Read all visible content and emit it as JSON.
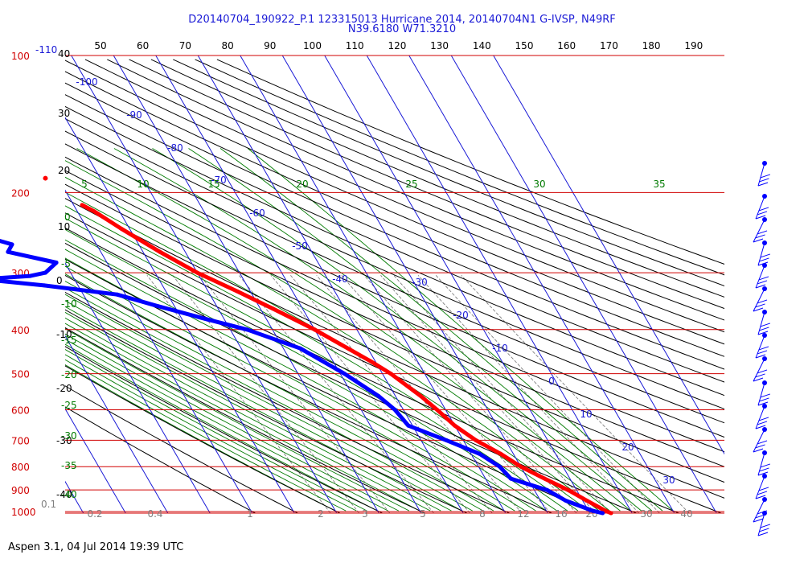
{
  "header": {
    "title": "D20140704_190922_P.1 123315013 Hurricane 2014, 20140704N1 G-IVSP, N49RF",
    "subtitle": "N39.6180 W71.3210"
  },
  "footer": {
    "text": "Aspen 3.1, 04 Jul 2014  19:39 UTC"
  },
  "colors": {
    "isobar": "#d10000",
    "isotherm": "#1a1ad6",
    "dry_adiabat": "#000000",
    "moist_adiabat": "#007a00",
    "mixing_ratio": "#7f7f7f",
    "temperature": "#ff0000",
    "dewpoint": "#0000ff"
  },
  "chart_data": {
    "type": "line",
    "title": "D20140704_190922_P.1 123315013 Hurricane 2014, 20140704N1 G-IVSP, N49RF",
    "pressure_levels": [
      100,
      200,
      300,
      400,
      500,
      600,
      700,
      800,
      900,
      1000
    ],
    "pressure_labels": [
      "100",
      "200",
      "300",
      "400",
      "500",
      "600",
      "700",
      "800",
      "900",
      "1000"
    ],
    "top_temp_ticks": [
      "50",
      "60",
      "70",
      "80",
      "90",
      "100",
      "110",
      "120",
      "130",
      "140",
      "150",
      "160",
      "170",
      "180",
      "190"
    ],
    "isotherm_labels": [
      "-110",
      "-100",
      "-90",
      "-80",
      "-70",
      "-60",
      "-50",
      "-40",
      "-30",
      "-20",
      "-10",
      "0",
      "10",
      "20",
      "30"
    ],
    "height_labels_left": [
      "40",
      "30",
      "20",
      "10",
      "0",
      "-10",
      "-20",
      "-30",
      "-40"
    ],
    "moist_top_labels": [
      "5",
      "10",
      "15",
      "20",
      "25",
      "30",
      "35"
    ],
    "moist_left_labels": [
      "0",
      "-5",
      "-10",
      "-15",
      "-20",
      "-25",
      "-30",
      "-35",
      "-40"
    ],
    "mixing_ratio_labels": [
      "0.1",
      "0.2",
      "0.4",
      "1",
      "2",
      "3",
      "5",
      "8",
      "12",
      "16",
      "20",
      "30",
      "40"
    ],
    "series": [
      {
        "name": "Temperature",
        "points": [
          [
            213,
            -58
          ],
          [
            220,
            -56
          ],
          [
            240,
            -52
          ],
          [
            270,
            -46
          ],
          [
            300,
            -40
          ],
          [
            330,
            -33
          ],
          [
            360,
            -27
          ],
          [
            400,
            -20
          ],
          [
            430,
            -16
          ],
          [
            470,
            -11
          ],
          [
            500,
            -8
          ],
          [
            560,
            -4
          ],
          [
            600,
            -2
          ],
          [
            650,
            0
          ],
          [
            700,
            3
          ],
          [
            750,
            7
          ],
          [
            800,
            10
          ],
          [
            850,
            14
          ],
          [
            900,
            18
          ],
          [
            950,
            21
          ],
          [
            1000,
            24
          ],
          [
            1012,
            25
          ]
        ]
      },
      {
        "name": "Dewpoint",
        "points": [
          [
            240,
            -85
          ],
          [
            245,
            -88
          ],
          [
            260,
            -80
          ],
          [
            270,
            -82
          ],
          [
            285,
            -72
          ],
          [
            300,
            -76
          ],
          [
            305,
            -80
          ],
          [
            310,
            -92
          ],
          [
            320,
            -78
          ],
          [
            335,
            -62
          ],
          [
            355,
            -54
          ],
          [
            380,
            -44
          ],
          [
            400,
            -36
          ],
          [
            440,
            -26
          ],
          [
            500,
            -19
          ],
          [
            560,
            -14
          ],
          [
            600,
            -12
          ],
          [
            650,
            -11
          ],
          [
            700,
            -4
          ],
          [
            750,
            2
          ],
          [
            800,
            5
          ],
          [
            850,
            6
          ],
          [
            900,
            13
          ],
          [
            950,
            16
          ],
          [
            1000,
            21
          ],
          [
            1012,
            23
          ]
        ]
      }
    ],
    "isolated_point": [
      186,
      -63
    ],
    "xlim": [
      -40,
      50
    ],
    "ylim": [
      100,
      1000
    ],
    "grid": true
  }
}
